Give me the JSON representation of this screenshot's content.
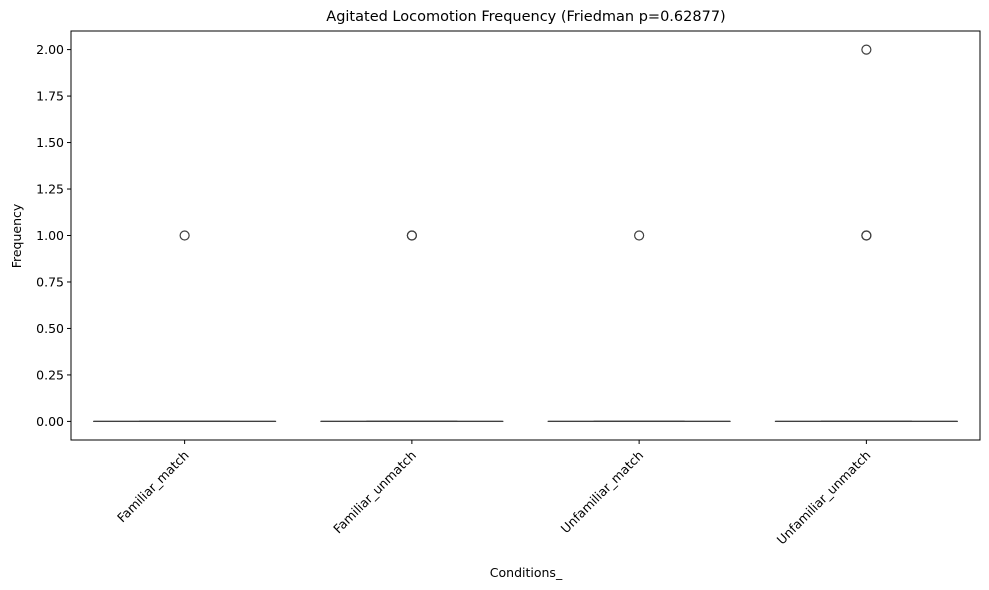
{
  "chart_data": {
    "type": "box",
    "title": "Agitated Locomotion Frequency (Friedman p=0.62877)",
    "xlabel": "Conditions_",
    "ylabel": "Frequency",
    "ylim": [
      -0.1,
      2.1
    ],
    "yticks": [
      0.0,
      0.25,
      0.5,
      0.75,
      1.0,
      1.25,
      1.5,
      1.75,
      2.0
    ],
    "ytick_labels": [
      "0.00",
      "0.25",
      "0.50",
      "0.75",
      "1.00",
      "1.25",
      "1.50",
      "1.75",
      "2.00"
    ],
    "categories": [
      "Familiar_match",
      "Familiar_unmatch",
      "Unfamiliar_match",
      "Unfamiliar_unmatch"
    ],
    "boxes": [
      {
        "q1": 0,
        "median": 0,
        "q3": 0,
        "whisker_low": 0,
        "whisker_high": 0,
        "outliers": [
          1
        ]
      },
      {
        "q1": 0,
        "median": 0,
        "q3": 0,
        "whisker_low": 0,
        "whisker_high": 0,
        "outliers": [
          1,
          1
        ]
      },
      {
        "q1": 0,
        "median": 0,
        "q3": 0,
        "whisker_low": 0,
        "whisker_high": 0,
        "outliers": [
          1
        ]
      },
      {
        "q1": 0,
        "median": 0,
        "q3": 0,
        "whisker_low": 0,
        "whisker_high": 0,
        "outliers": [
          1,
          1,
          2
        ]
      }
    ],
    "grid": false,
    "tick_label_rotation": 45
  }
}
